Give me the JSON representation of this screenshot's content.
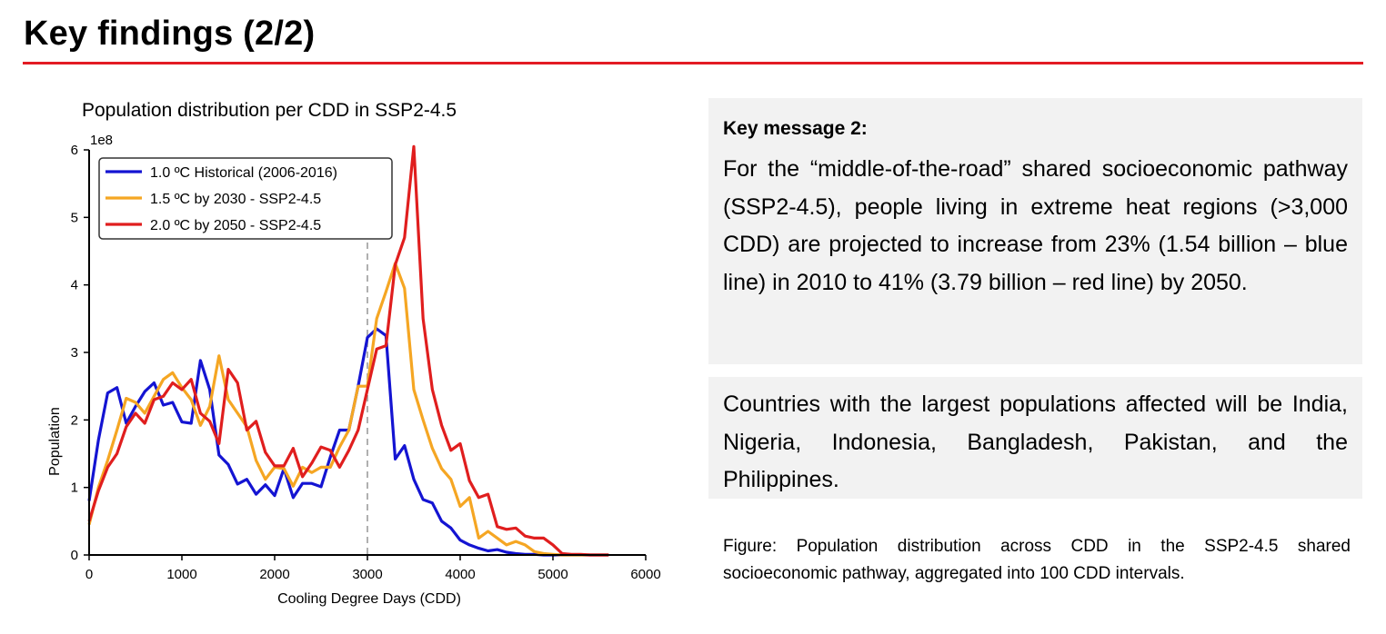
{
  "page": {
    "title": "Key findings (2/2)",
    "accent_color": "#e31b23"
  },
  "key_message": {
    "label": "Key message 2:",
    "text": "For the “middle-of-the-road” shared socioeconomic pathway (SSP2-4.5), people living in extreme heat regions (>3,000 CDD) are projected to increase from 23% (1.54 billion – blue line) in 2010 to 41% (3.79 billion – red line) by 2050."
  },
  "countries_message": {
    "text": "Countries with the largest populations affected will be India, Nigeria, Indonesia, Bangladesh, Pakistan, and the Philippines."
  },
  "caption": {
    "text": "Figure: Population distribution across CDD in the SSP2-4.5 shared socioeconomic pathway, aggregated into 100 CDD intervals."
  },
  "chart_data": {
    "type": "line",
    "title": "Population distribution per CDD in SSP2-4.5",
    "xlabel": "Cooling Degree Days (CDD)",
    "ylabel": "Population",
    "y_multiplier_label": "1e8",
    "xlim": [
      0,
      6000
    ],
    "ylim": [
      0,
      6
    ],
    "x_ticks": [
      0,
      1000,
      2000,
      3000,
      4000,
      5000,
      6000
    ],
    "y_ticks": [
      0,
      1,
      2,
      3,
      4,
      5,
      6
    ],
    "grid": false,
    "legend_position": "top-left",
    "reference_line": {
      "x": 3000,
      "style": "dashed",
      "color": "#b0b0b0"
    },
    "x": [
      0,
      100,
      200,
      300,
      400,
      500,
      600,
      700,
      800,
      900,
      1000,
      1100,
      1200,
      1300,
      1400,
      1500,
      1600,
      1700,
      1800,
      1900,
      2000,
      2100,
      2200,
      2300,
      2400,
      2500,
      2600,
      2700,
      2800,
      2900,
      3000,
      3100,
      3200,
      3300,
      3400,
      3500,
      3600,
      3700,
      3800,
      3900,
      4000,
      4100,
      4200,
      4300,
      4400,
      4500,
      4600,
      4700,
      4800,
      4900,
      5000,
      5100,
      5200,
      5300,
      5400,
      5500,
      5600
    ],
    "series": [
      {
        "name": "1.0 ºC Historical (2006-2016)",
        "color": "#1414d2",
        "values": [
          0.8,
          1.7,
          2.4,
          2.48,
          1.95,
          2.2,
          2.42,
          2.55,
          2.22,
          2.26,
          1.97,
          1.95,
          2.88,
          2.45,
          1.48,
          1.34,
          1.05,
          1.12,
          0.9,
          1.04,
          0.88,
          1.28,
          0.85,
          1.06,
          1.06,
          1.01,
          1.45,
          1.85,
          1.85,
          2.5,
          3.22,
          3.35,
          3.25,
          1.42,
          1.62,
          1.12,
          0.82,
          0.77,
          0.5,
          0.4,
          0.22,
          0.15,
          0.1,
          0.06,
          0.08,
          0.04,
          0.02,
          0.01,
          0.01,
          0.0,
          0.0,
          0.0,
          0.0,
          0.0,
          0.0,
          0.0,
          0.0
        ]
      },
      {
        "name": "1.5 ºC by 2030 - SSP2-4.5",
        "color": "#f5a623",
        "values": [
          0.45,
          1.0,
          1.4,
          1.85,
          2.32,
          2.26,
          2.1,
          2.35,
          2.6,
          2.7,
          2.48,
          2.3,
          1.92,
          2.2,
          2.95,
          2.3,
          2.1,
          1.9,
          1.4,
          1.12,
          1.3,
          1.28,
          1.02,
          1.3,
          1.22,
          1.3,
          1.3,
          1.6,
          1.85,
          2.5,
          2.5,
          3.5,
          3.9,
          4.32,
          3.95,
          2.45,
          2.0,
          1.58,
          1.28,
          1.12,
          0.72,
          0.85,
          0.25,
          0.35,
          0.25,
          0.15,
          0.2,
          0.15,
          0.05,
          0.02,
          0.01,
          0.0,
          0.0,
          0.0,
          0.0,
          0.0,
          0.0
        ]
      },
      {
        "name": "2.0 ºC by 2050 - SSP2-4.5",
        "color": "#e01e1e",
        "values": [
          0.5,
          0.95,
          1.3,
          1.5,
          1.9,
          2.1,
          1.95,
          2.3,
          2.35,
          2.55,
          2.45,
          2.6,
          2.1,
          1.98,
          1.65,
          2.75,
          2.55,
          1.85,
          1.98,
          1.52,
          1.32,
          1.32,
          1.58,
          1.16,
          1.36,
          1.6,
          1.55,
          1.3,
          1.55,
          1.85,
          2.45,
          3.05,
          3.1,
          4.3,
          4.7,
          6.05,
          3.5,
          2.45,
          1.92,
          1.55,
          1.65,
          1.1,
          0.85,
          0.9,
          0.42,
          0.38,
          0.4,
          0.28,
          0.25,
          0.25,
          0.15,
          0.02,
          0.01,
          0.01,
          0.0,
          0.0,
          0.0
        ]
      }
    ]
  }
}
